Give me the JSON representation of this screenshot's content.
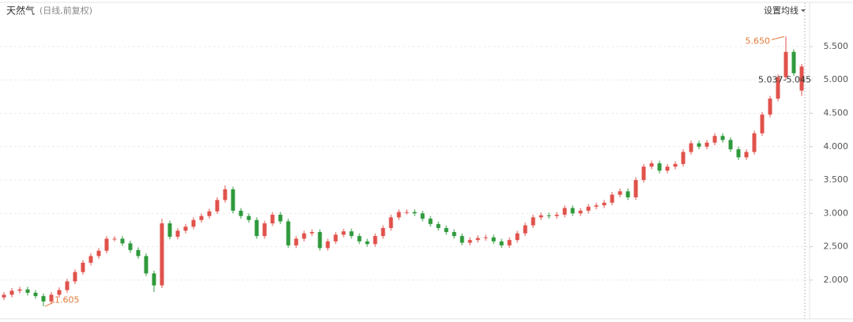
{
  "chart_data": {
    "type": "candlestick",
    "title": "天然气",
    "subtitle": "(日线,前复权)",
    "settings_label": "设置均线",
    "up_color": "#e0524b",
    "down_color": "#2f9a3c",
    "grid": true,
    "ylim": [
      1.49,
      6.02
    ],
    "yticks": [
      {
        "value": 2,
        "label": "2.000"
      },
      {
        "value": 2.5,
        "label": "2.500"
      },
      {
        "value": 3,
        "label": "3.000"
      },
      {
        "value": 3.5,
        "label": "3.500"
      },
      {
        "value": 4,
        "label": "4.000"
      },
      {
        "value": 4.5,
        "label": "4.500"
      },
      {
        "value": 5,
        "label": "5.000"
      },
      {
        "value": 5.5,
        "label": "5.500"
      }
    ],
    "open": [
      1.74,
      1.78,
      1.84,
      1.86,
      1.81,
      1.76,
      1.68,
      1.78,
      1.85,
      1.98,
      2.12,
      2.26,
      2.36,
      2.44,
      2.62,
      2.62,
      2.55,
      2.45,
      2.36,
      2.1,
      1.92,
      2.85,
      2.65,
      2.74,
      2.8,
      2.9,
      2.96,
      3.03,
      3.2,
      3.36,
      3.04,
      2.96,
      2.9,
      2.66,
      2.85,
      2.98,
      2.88,
      2.52,
      2.62,
      2.7,
      2.72,
      2.48,
      2.58,
      2.68,
      2.73,
      2.66,
      2.58,
      2.54,
      2.66,
      2.78,
      2.94,
      3.02,
      3.02,
      3.0,
      2.92,
      2.84,
      2.78,
      2.72,
      2.66,
      2.56,
      2.6,
      2.63,
      2.64,
      2.58,
      2.52,
      2.6,
      2.7,
      2.82,
      2.94,
      2.97,
      2.96,
      2.98,
      3.08,
      3.0,
      3.04,
      3.1,
      3.12,
      3.16,
      3.28,
      3.33,
      3.24,
      3.5,
      3.7,
      3.75,
      3.64,
      3.7,
      3.74,
      3.92,
      4.05,
      4.0,
      4.06,
      4.16,
      4.1,
      3.96,
      3.84,
      3.92,
      4.2,
      4.48,
      4.72,
      5.04,
      5.42,
      4.84
    ],
    "close": [
      1.78,
      1.84,
      1.86,
      1.81,
      1.76,
      1.68,
      1.78,
      1.85,
      1.98,
      2.12,
      2.26,
      2.36,
      2.44,
      2.62,
      2.62,
      2.55,
      2.45,
      2.36,
      2.1,
      1.92,
      2.85,
      2.65,
      2.74,
      2.8,
      2.9,
      2.96,
      3.03,
      3.2,
      3.36,
      3.04,
      2.96,
      2.9,
      2.66,
      2.85,
      2.98,
      2.88,
      2.52,
      2.62,
      2.7,
      2.72,
      2.48,
      2.58,
      2.68,
      2.73,
      2.66,
      2.58,
      2.54,
      2.66,
      2.78,
      2.94,
      3.02,
      3.02,
      3.0,
      2.92,
      2.84,
      2.78,
      2.72,
      2.66,
      2.56,
      2.6,
      2.63,
      2.64,
      2.58,
      2.52,
      2.6,
      2.7,
      2.82,
      2.94,
      2.97,
      2.96,
      2.98,
      3.08,
      3.0,
      3.04,
      3.1,
      3.12,
      3.16,
      3.28,
      3.33,
      3.24,
      3.5,
      3.7,
      3.75,
      3.64,
      3.7,
      3.74,
      3.92,
      4.05,
      4.0,
      4.06,
      4.16,
      4.1,
      3.96,
      3.84,
      3.92,
      4.2,
      4.48,
      4.72,
      5.04,
      5.42,
      5.1,
      5.2
    ],
    "high": [
      1.82,
      1.88,
      1.9,
      1.9,
      1.85,
      1.8,
      1.82,
      1.89,
      2.02,
      2.16,
      2.3,
      2.4,
      2.48,
      2.66,
      2.66,
      2.66,
      2.59,
      2.49,
      2.4,
      2.14,
      2.92,
      2.89,
      2.78,
      2.84,
      2.94,
      3.0,
      3.07,
      3.24,
      3.42,
      3.4,
      3.08,
      3.0,
      2.94,
      2.89,
      3.02,
      3.02,
      2.92,
      2.66,
      2.74,
      2.76,
      2.76,
      2.62,
      2.72,
      2.77,
      2.77,
      2.7,
      2.62,
      2.7,
      2.82,
      2.98,
      3.06,
      3.06,
      3.06,
      3.04,
      2.96,
      2.88,
      2.82,
      2.76,
      2.7,
      2.64,
      2.67,
      2.68,
      2.68,
      2.62,
      2.64,
      2.74,
      2.86,
      2.98,
      3.01,
      3.01,
      3.02,
      3.12,
      3.12,
      3.08,
      3.14,
      3.16,
      3.2,
      3.32,
      3.37,
      3.37,
      3.54,
      3.74,
      3.79,
      3.79,
      3.74,
      3.78,
      3.96,
      4.09,
      4.09,
      4.1,
      4.2,
      4.2,
      4.14,
      4.0,
      3.96,
      4.24,
      4.52,
      4.76,
      5.08,
      5.65,
      5.46,
      5.24
    ],
    "low": [
      1.7,
      1.74,
      1.8,
      1.77,
      1.72,
      1.605,
      1.64,
      1.74,
      1.81,
      1.94,
      2.08,
      2.22,
      2.32,
      2.4,
      2.58,
      2.51,
      2.41,
      2.32,
      2.06,
      1.82,
      1.88,
      2.61,
      2.61,
      2.7,
      2.76,
      2.86,
      2.92,
      2.99,
      3.16,
      3.0,
      2.92,
      2.86,
      2.62,
      2.62,
      2.81,
      2.84,
      2.48,
      2.48,
      2.58,
      2.66,
      2.44,
      2.44,
      2.54,
      2.64,
      2.62,
      2.54,
      2.5,
      2.5,
      2.62,
      2.74,
      2.9,
      2.98,
      2.96,
      2.88,
      2.8,
      2.74,
      2.68,
      2.62,
      2.52,
      2.52,
      2.56,
      2.59,
      2.54,
      2.48,
      2.48,
      2.56,
      2.66,
      2.78,
      2.9,
      2.92,
      2.92,
      2.94,
      2.96,
      2.96,
      3.0,
      3.06,
      3.08,
      3.12,
      3.24,
      3.2,
      3.2,
      3.46,
      3.66,
      3.6,
      3.6,
      3.66,
      3.7,
      3.88,
      3.96,
      3.96,
      4.02,
      4.06,
      3.92,
      3.8,
      3.8,
      3.88,
      4.16,
      4.44,
      4.68,
      5.0,
      5.06,
      4.76
    ],
    "annotations": [
      {
        "value": 5.65,
        "label": "5.650"
      },
      {
        "value": 1.605,
        "label": "1.605"
      }
    ],
    "cursor_label": "5.037-5.045"
  }
}
